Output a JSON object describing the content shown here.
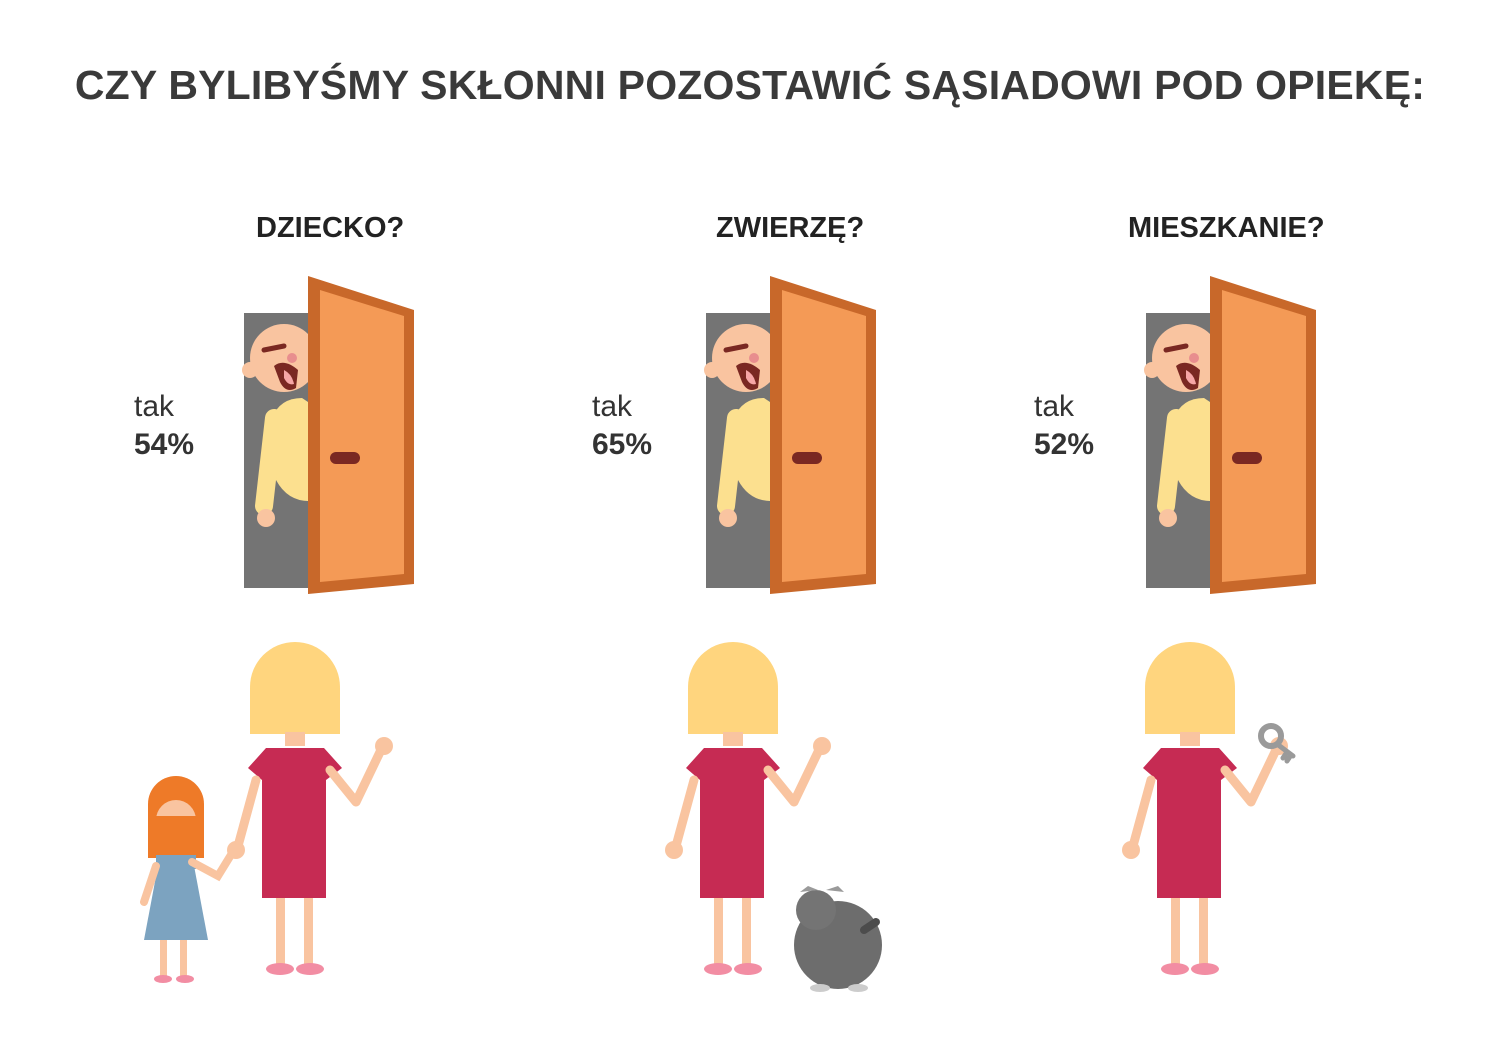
{
  "title": "CZY BYLIBYŚMY SKŁONNI POZOSTAWIĆ SĄSIADOWI POD OPIEKĘ:",
  "colors": {
    "door": "#F49A56",
    "door_frame": "#C8682A",
    "doorway": "#747474",
    "dress": "#C62B53",
    "hair_woman": "#FFD57E",
    "skin": "#F9C4A0",
    "hair_child": "#EE7A28",
    "child_dress": "#7CA3C0",
    "dog": "#6D6D6D",
    "neighbor_shirt": "#FCE08F",
    "neighbor_mustache": "#7A2822"
  },
  "panels": [
    {
      "question": "DZIECKO?",
      "answer_label": "tak",
      "answer_value": "54%",
      "item": "child-icon"
    },
    {
      "question": "ZWIERZĘ?",
      "answer_label": "tak",
      "answer_value": "65%",
      "item": "dog-icon"
    },
    {
      "question": "MIESZKANIE?",
      "answer_label": "tak",
      "answer_value": "52%",
      "item": "key-icon"
    }
  ]
}
